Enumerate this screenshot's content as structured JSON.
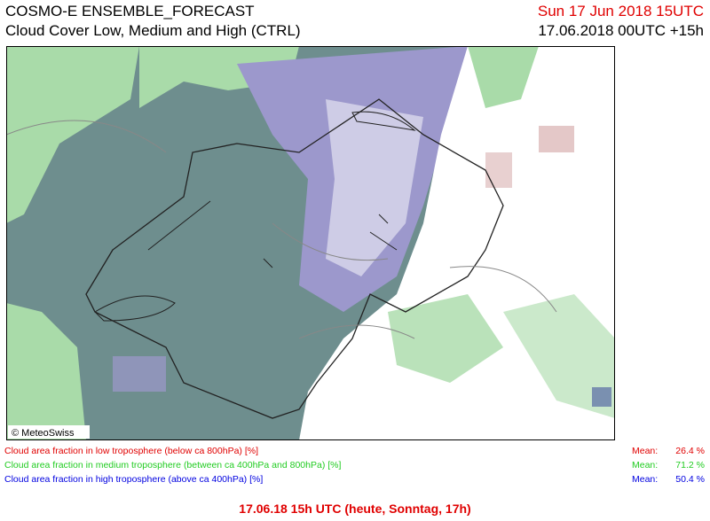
{
  "header": {
    "title": "COSMO-E ENSEMBLE_FORECAST",
    "subtitle": "Cloud Cover Low, Medium and High (CTRL)",
    "valid_time": "Sun 17 Jun 2018 15UTC",
    "run_time": "17.06.2018 00UTC +15h"
  },
  "map": {
    "copyright": "© MeteoSwiss"
  },
  "legend": [
    {
      "label": "Cloud area fraction in low troposphere (below ca 800hPa) [%]",
      "mean_label": "Mean:",
      "mean": "26.4 %"
    },
    {
      "label": "Cloud area fraction in medium troposphere (between ca 400hPa and 800hPa) [%]",
      "mean_label": "Mean:",
      "mean": "71.2 %"
    },
    {
      "label": "Cloud area fraction in high troposphere (above ca 400hPa) [%]",
      "mean_label": "Mean:",
      "mean": "50.4 %"
    }
  ],
  "footer": "17.06.18 15h UTC (heute, Sonntag, 17h)"
}
